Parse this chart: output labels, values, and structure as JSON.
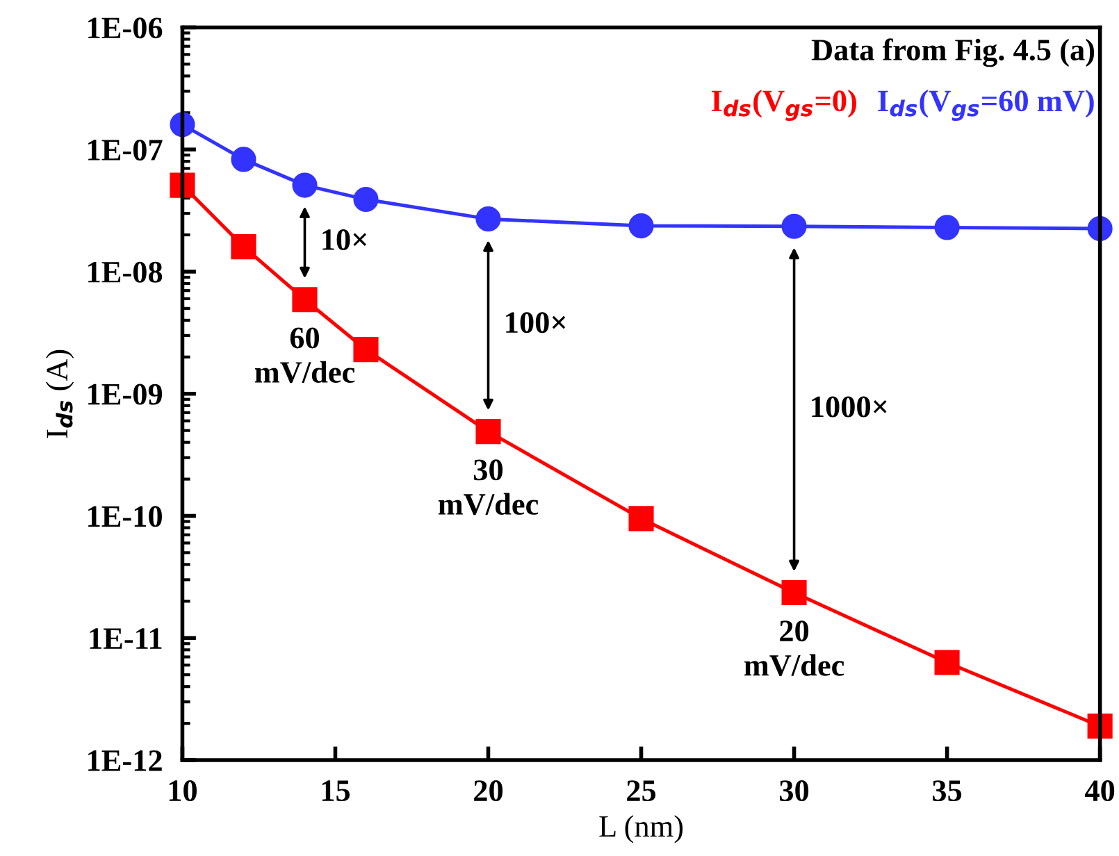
{
  "chart_data": {
    "type": "line",
    "xlabel": "L (nm)",
    "ylabel": "I$_{ds}$ (A)",
    "log": "y",
    "grid": false,
    "line_style": "solid",
    "x": [
      10,
      12,
      14,
      16,
      20,
      25,
      30,
      35,
      40
    ],
    "xlim": [
      10,
      40
    ],
    "xticks": [
      10,
      15,
      20,
      25,
      30,
      35,
      40
    ],
    "ylim": [
      1e-12,
      1e-06
    ],
    "yticks": [
      {
        "value": 1e-12,
        "label": "1E-12"
      },
      {
        "value": 1e-11,
        "label": "1E-11"
      },
      {
        "value": 1e-10,
        "label": "1E-10"
      },
      {
        "value": 1e-09,
        "label": "1E-09"
      },
      {
        "value": 1e-08,
        "label": "1E-08"
      },
      {
        "value": 1e-07,
        "label": "1E-07"
      },
      {
        "value": 1e-06,
        "label": "1E-06"
      }
    ],
    "series": [
      {
        "name": "I$_{ds}$(V$_{gs}$=0)",
        "color": "#ff0000",
        "marker": "square",
        "values": [
          5.1e-08,
          1.6e-08,
          5.9e-09,
          2.3e-09,
          4.9e-10,
          9.5e-11,
          2.35e-11,
          6.3e-12,
          1.9e-12
        ]
      },
      {
        "name": "I$_{ds}$(V$_{gs}$=60 mV)",
        "color": "#3333ff",
        "marker": "circle",
        "values": [
          1.6e-07,
          8.3e-08,
          5.1e-08,
          3.9e-08,
          2.7e-08,
          2.37e-08,
          2.35e-08,
          2.3e-08,
          2.25e-08
        ]
      }
    ],
    "annotations": [
      "Data from Fig. 4.5 (a)",
      "10×",
      "100×",
      "1000×",
      {
        "text": "60\nmV/dec",
        "x": 14,
        "y": 5.9e-09
      },
      {
        "text": "30\nmV/dec",
        "x": 20,
        "y": 4.9e-10
      },
      {
        "text": "20\nmV/dec",
        "x": 30,
        "y": 2.35e-11
      }
    ]
  }
}
